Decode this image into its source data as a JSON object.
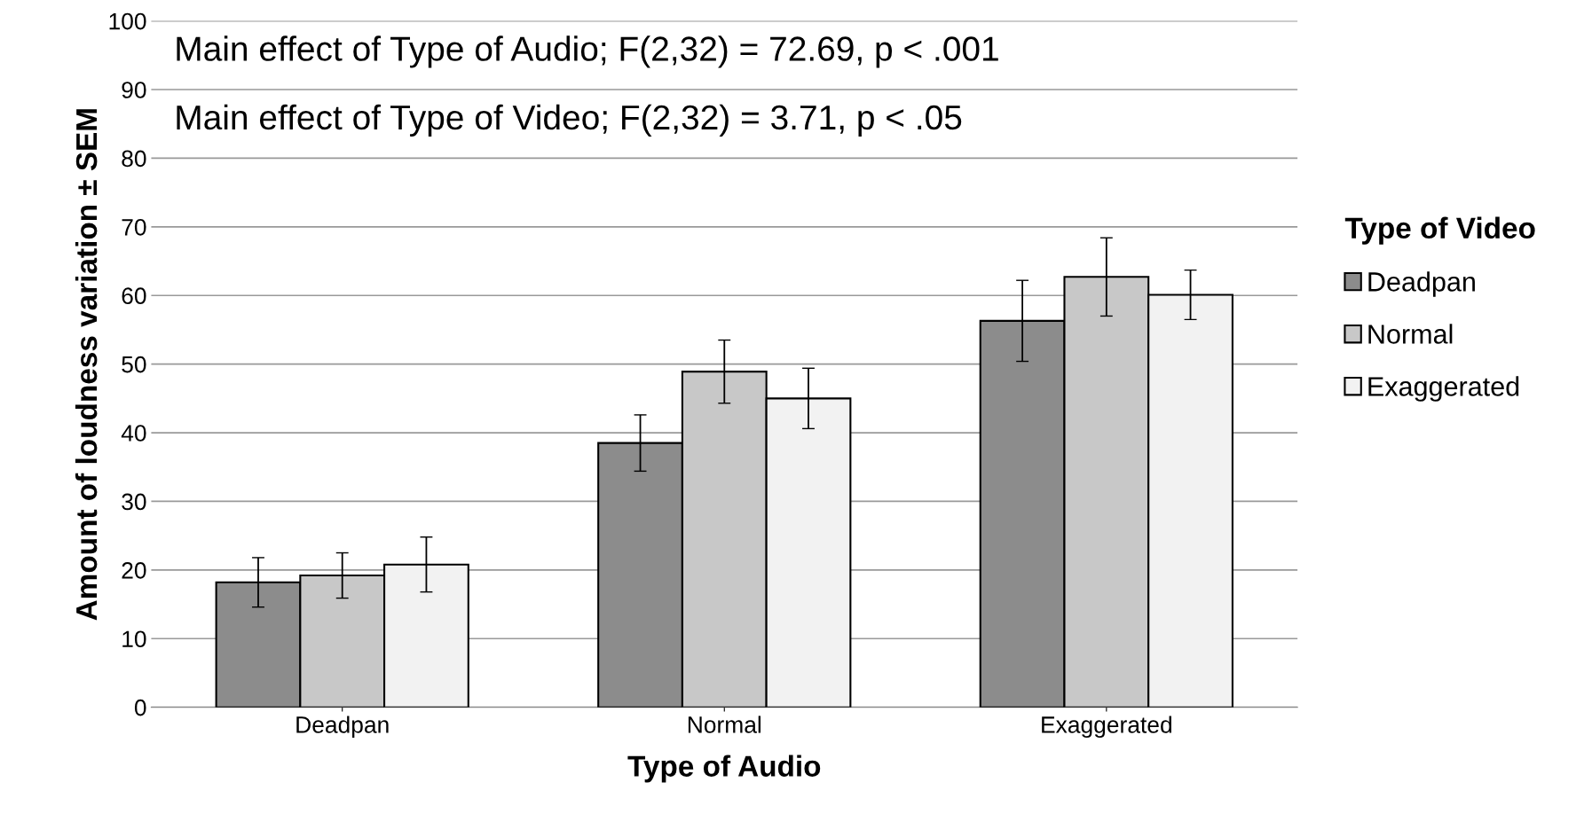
{
  "chart_data": {
    "type": "bar",
    "xlabel": "Type of Audio",
    "ylabel": "Amount of loudness variation ± SEM",
    "legend_title": "Type of Video",
    "categories": [
      "Deadpan",
      "Normal",
      "Exaggerated"
    ],
    "series": [
      {
        "name": "Deadpan",
        "color": "#8c8c8c",
        "values": [
          18.2,
          38.5,
          56.3
        ],
        "errors": [
          3.6,
          4.1,
          5.9
        ]
      },
      {
        "name": "Normal",
        "color": "#c8c8c8",
        "values": [
          19.2,
          48.9,
          62.7
        ],
        "errors": [
          3.3,
          4.6,
          5.7
        ]
      },
      {
        "name": "Exaggerated",
        "color": "#f2f2f2",
        "values": [
          20.8,
          45.0,
          60.1
        ],
        "errors": [
          4.0,
          4.4,
          3.6
        ]
      }
    ],
    "ylim": [
      0,
      100
    ],
    "yticks": [
      0,
      10,
      20,
      30,
      40,
      50,
      60,
      70,
      80,
      90,
      100
    ],
    "grid": "y",
    "legend": "right",
    "annotations": [
      "Main effect of Type of Audio; F(2,32) = 72.69, p < .001",
      "Main effect of Type of Video; F(2,32) = 3.71, p < .05"
    ]
  }
}
